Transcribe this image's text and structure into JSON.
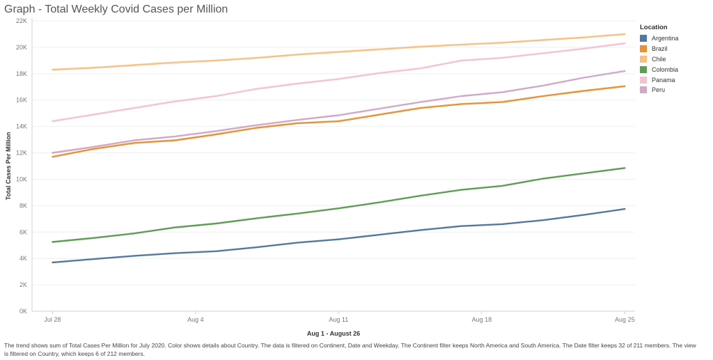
{
  "title": "Graph - Total Weekly Covid Cases per Million",
  "footnote": "The trend shows sum of Total Cases Per Million for July 2020.  Color shows details about Country. The data is filtered on Continent, Date and Weekday. The Continent filter keeps North America and South America. The Date filter keeps 32 of 211 members. The view is filtered on Country, which keeps 6 of 212 members.",
  "chart_data": {
    "type": "line",
    "title": "Graph - Total Weekly Covid Cases per Million",
    "xlabel": "Aug 1 - August 26",
    "ylabel": "Total Cases Per Million",
    "legend_title": "Location",
    "legend_position": "right",
    "grid": true,
    "ylim": [
      0,
      22000
    ],
    "y_ticks": [
      0,
      2000,
      4000,
      6000,
      8000,
      10000,
      12000,
      14000,
      16000,
      18000,
      20000,
      22000
    ],
    "y_tick_labels": [
      "0K",
      "2K",
      "4K",
      "6K",
      "8K",
      "10K",
      "12K",
      "14K",
      "16K",
      "18K",
      "20K",
      "22K"
    ],
    "x_ticks": [
      0,
      7,
      14,
      21,
      28
    ],
    "x_tick_labels": [
      "Jul 28",
      "Aug 4",
      "Aug 11",
      "Aug 18",
      "Aug 25"
    ],
    "xlim": [
      -1,
      28.5
    ],
    "x": [
      0,
      2,
      4,
      6,
      8,
      10,
      12,
      14,
      16,
      18,
      20,
      22,
      24,
      26,
      28
    ],
    "series": [
      {
        "name": "Argentina",
        "color": "#4e79a7",
        "values": [
          3700,
          3950,
          4200,
          4400,
          4550,
          4850,
          5200,
          5450,
          5800,
          6150,
          6450,
          6600,
          6900,
          7300,
          7750
        ]
      },
      {
        "name": "Brazil",
        "color": "#f28e2b",
        "values": [
          11700,
          12300,
          12750,
          12950,
          13400,
          13900,
          14250,
          14400,
          14900,
          15400,
          15700,
          15850,
          16300,
          16700,
          17050
        ]
      },
      {
        "name": "Chile",
        "color": "#ffbe7d",
        "values": [
          18300,
          18450,
          18650,
          18850,
          19000,
          19200,
          19450,
          19650,
          19850,
          20050,
          20200,
          20350,
          20550,
          20750,
          21000
        ]
      },
      {
        "name": "Colombia",
        "color": "#59a14f",
        "values": [
          5250,
          5550,
          5900,
          6350,
          6650,
          7050,
          7400,
          7800,
          8250,
          8750,
          9200,
          9500,
          10050,
          10450,
          10850
        ]
      },
      {
        "name": "Panama",
        "color": "#fabfd2",
        "values": [
          14400,
          14900,
          15400,
          15900,
          16300,
          16850,
          17250,
          17600,
          18050,
          18400,
          19000,
          19200,
          19550,
          19900,
          20300
        ]
      },
      {
        "name": "Peru",
        "color": "#d4a6c8",
        "values": [
          12000,
          12450,
          12950,
          13250,
          13650,
          14100,
          14500,
          14850,
          15350,
          15850,
          16300,
          16600,
          17100,
          17700,
          18200
        ]
      }
    ]
  }
}
